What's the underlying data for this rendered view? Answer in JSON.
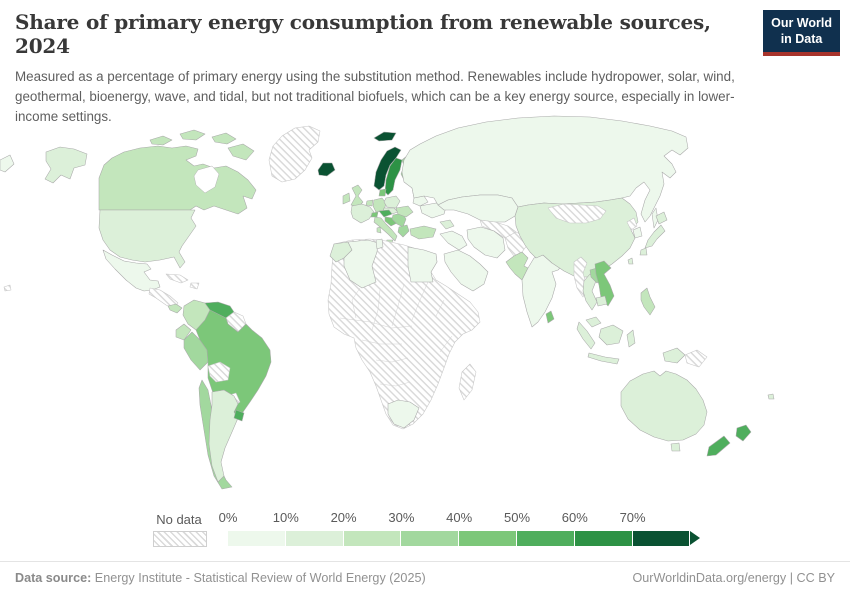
{
  "header": {
    "title": "Share of primary energy consumption from renewable sources, 2024",
    "subtitle": "Measured as a percentage of primary energy using the substitution method. Renewables include hydropower, solar, wind, geothermal, bioenergy, wave, and tidal, but not traditional biofuels, which can be a key energy source, especially in lower-income settings."
  },
  "logo": {
    "line1": "Our World",
    "line2": "in Data",
    "bg_color": "#10304e",
    "accent_color": "#a8342c"
  },
  "legend": {
    "no_data_label": "No data",
    "tick_labels": [
      "0%",
      "10%",
      "20%",
      "30%",
      "40%",
      "50%",
      "60%",
      "70%"
    ],
    "bin_colors": [
      "#edf8ec",
      "#dcf0d9",
      "#c3e6bc",
      "#a2d89e",
      "#7cc779",
      "#4fae5d",
      "#2d9245",
      "#0a5232"
    ],
    "bin_ranges": [
      "0-10%",
      "10-20%",
      "20-30%",
      "30-40%",
      "40-50%",
      "50-60%",
      "60-70%",
      "70%+"
    ],
    "hatch_color": "#dadada"
  },
  "footer": {
    "source_label": "Data source:",
    "source_text": " Energy Institute - Statistical Review of World Energy (2025)",
    "credit_text": "OurWorldinData.org/energy | CC BY"
  },
  "chart_data": {
    "type": "choropleth-map",
    "title": "Share of primary energy consumption from renewable sources, 2024",
    "unit": "% of primary energy (substitution method)",
    "year": 2024,
    "bins": [
      {
        "range": "0-10%",
        "color": "#edf8ec"
      },
      {
        "range": "10-20%",
        "color": "#dcf0d9"
      },
      {
        "range": "20-30%",
        "color": "#c3e6bc"
      },
      {
        "range": "30-40%",
        "color": "#a2d89e"
      },
      {
        "range": "40-50%",
        "color": "#7cc779"
      },
      {
        "range": "50-60%",
        "color": "#4fae5d"
      },
      {
        "range": "60-70%",
        "color": "#2d9245"
      },
      {
        "range": "70%+",
        "color": "#0a5232"
      }
    ],
    "regions": [
      {
        "name": "Iceland",
        "bin": "70%+"
      },
      {
        "name": "Norway",
        "bin": "70%+"
      },
      {
        "name": "Sweden",
        "bin": "60-70%"
      },
      {
        "name": "Austria",
        "bin": "50-60%"
      },
      {
        "name": "Uruguay",
        "bin": "50-60%"
      },
      {
        "name": "Venezuela",
        "bin": "50-60%"
      },
      {
        "name": "New Zealand",
        "bin": "50-60%"
      },
      {
        "name": "Brazil",
        "bin": "40-50%"
      },
      {
        "name": "Denmark",
        "bin": "40-50%"
      },
      {
        "name": "Switzerland",
        "bin": "40-50%"
      },
      {
        "name": "Portugal",
        "bin": "40-50%"
      },
      {
        "name": "Vietnam",
        "bin": "40-50%"
      },
      {
        "name": "Sri Lanka",
        "bin": "40-50%"
      },
      {
        "name": "Croatia and Slovenia",
        "bin": "40-50%"
      },
      {
        "name": "Finland",
        "bin": "30-40%"
      },
      {
        "name": "Spain",
        "bin": "30-40%"
      },
      {
        "name": "Peru",
        "bin": "30-40%"
      },
      {
        "name": "Chile",
        "bin": "30-40%"
      },
      {
        "name": "Laos",
        "bin": "30-40%"
      },
      {
        "name": "Greece",
        "bin": "30-40%"
      },
      {
        "name": "Balkans",
        "bin": "30-40%"
      },
      {
        "name": "Baltic states",
        "bin": "30-40%"
      },
      {
        "name": "Canada",
        "bin": "20-30%"
      },
      {
        "name": "United Kingdom",
        "bin": "20-30%"
      },
      {
        "name": "Ireland",
        "bin": "20-30%"
      },
      {
        "name": "Germany",
        "bin": "20-30%"
      },
      {
        "name": "Italy",
        "bin": "20-30%"
      },
      {
        "name": "Romania",
        "bin": "20-30%"
      },
      {
        "name": "Turkey",
        "bin": "20-30%"
      },
      {
        "name": "Pakistan",
        "bin": "20-30%"
      },
      {
        "name": "Colombia",
        "bin": "20-30%"
      },
      {
        "name": "Ecuador",
        "bin": "20-30%"
      },
      {
        "name": "Philippines",
        "bin": "20-30%"
      },
      {
        "name": "Panama and Costa Rica",
        "bin": "20-30%"
      },
      {
        "name": "United States",
        "bin": "10-20%"
      },
      {
        "name": "France",
        "bin": "10-20%"
      },
      {
        "name": "Poland",
        "bin": "10-20%"
      },
      {
        "name": "Central Europe",
        "bin": "10-20%"
      },
      {
        "name": "China",
        "bin": "10-20%"
      },
      {
        "name": "Japan",
        "bin": "10-20%"
      },
      {
        "name": "Taiwan",
        "bin": "10-20%"
      },
      {
        "name": "Australia",
        "bin": "10-20%"
      },
      {
        "name": "Indonesia",
        "bin": "10-20%"
      },
      {
        "name": "Thailand",
        "bin": "10-20%"
      },
      {
        "name": "Malaysia",
        "bin": "10-20%"
      },
      {
        "name": "Cambodia",
        "bin": "10-20%"
      },
      {
        "name": "Argentina",
        "bin": "10-20%"
      },
      {
        "name": "Morocco",
        "bin": "10-20%"
      },
      {
        "name": "Caucasus",
        "bin": "10-20%"
      },
      {
        "name": "Mexico",
        "bin": "0-10%"
      },
      {
        "name": "Russia",
        "bin": "0-10%"
      },
      {
        "name": "India",
        "bin": "0-10%"
      },
      {
        "name": "Kazakhstan",
        "bin": "0-10%"
      },
      {
        "name": "Ukraine",
        "bin": "0-10%"
      },
      {
        "name": "Belarus",
        "bin": "0-10%"
      },
      {
        "name": "Iran",
        "bin": "0-10%"
      },
      {
        "name": "Iraq and Levant",
        "bin": "0-10%"
      },
      {
        "name": "Saudi Arabia",
        "bin": "0-10%"
      },
      {
        "name": "Egypt",
        "bin": "0-10%"
      },
      {
        "name": "Algeria",
        "bin": "0-10%"
      },
      {
        "name": "Tunisia",
        "bin": "0-10%"
      },
      {
        "name": "South Africa",
        "bin": "0-10%"
      },
      {
        "name": "South Korea",
        "bin": "0-10%"
      },
      {
        "name": "Greenland",
        "bin": "No data"
      },
      {
        "name": "Cuba",
        "bin": "No data"
      },
      {
        "name": "Hispaniola",
        "bin": "No data"
      },
      {
        "name": "Central America",
        "bin": "No data"
      },
      {
        "name": "Bolivia",
        "bin": "No data"
      },
      {
        "name": "Paraguay",
        "bin": "No data"
      },
      {
        "name": "Guyanas",
        "bin": "No data"
      },
      {
        "name": "Sub-Saharan Africa",
        "bin": "No data"
      },
      {
        "name": "Libya",
        "bin": "No data"
      },
      {
        "name": "Madagascar",
        "bin": "No data"
      },
      {
        "name": "Mongolia",
        "bin": "No data"
      },
      {
        "name": "Central Asia",
        "bin": "No data"
      },
      {
        "name": "Afghanistan",
        "bin": "No data"
      },
      {
        "name": "Myanmar",
        "bin": "No data"
      },
      {
        "name": "North Korea",
        "bin": "No data"
      },
      {
        "name": "Papua New Guinea",
        "bin": "No data"
      }
    ]
  },
  "map": {
    "countries": [
      {
        "id": "greenland",
        "bin": 0
      },
      {
        "id": "canada",
        "bin": 3
      },
      {
        "id": "usa",
        "bin": 2
      },
      {
        "id": "mexico",
        "bin": 1
      },
      {
        "id": "central-america",
        "bin": 0
      },
      {
        "id": "panama-costa-rica",
        "bin": 3
      },
      {
        "id": "cuba",
        "bin": 0
      },
      {
        "id": "hispaniola",
        "bin": 0
      },
      {
        "id": "hawaii",
        "bin": 0
      },
      {
        "id": "colombia",
        "bin": 3
      },
      {
        "id": "venezuela",
        "bin": 6
      },
      {
        "id": "guyanas",
        "bin": 0
      },
      {
        "id": "ecuador",
        "bin": 3
      },
      {
        "id": "peru",
        "bin": 4
      },
      {
        "id": "brazil",
        "bin": 5
      },
      {
        "id": "bolivia",
        "bin": 0
      },
      {
        "id": "paraguay",
        "bin": 0
      },
      {
        "id": "chile",
        "bin": 4
      },
      {
        "id": "argentina",
        "bin": 2
      },
      {
        "id": "uruguay",
        "bin": 6
      },
      {
        "id": "iceland",
        "bin": 8
      },
      {
        "id": "norway",
        "bin": 8
      },
      {
        "id": "sweden",
        "bin": 7
      },
      {
        "id": "finland",
        "bin": 4
      },
      {
        "id": "denmark",
        "bin": 5
      },
      {
        "id": "uk",
        "bin": 3
      },
      {
        "id": "ireland",
        "bin": 3
      },
      {
        "id": "benelux",
        "bin": 3
      },
      {
        "id": "france",
        "bin": 2
      },
      {
        "id": "germany",
        "bin": 3
      },
      {
        "id": "poland",
        "bin": 2
      },
      {
        "id": "czech-slovakia",
        "bin": 2
      },
      {
        "id": "switzerland",
        "bin": 5
      },
      {
        "id": "austria",
        "bin": 6
      },
      {
        "id": "italy",
        "bin": 3
      },
      {
        "id": "croatia-slovenia",
        "bin": 5
      },
      {
        "id": "balkans",
        "bin": 4
      },
      {
        "id": "greece",
        "bin": 4
      },
      {
        "id": "romania",
        "bin": 3
      },
      {
        "id": "baltics",
        "bin": 4
      },
      {
        "id": "belarus",
        "bin": 1
      },
      {
        "id": "ukraine",
        "bin": 1
      },
      {
        "id": "russia",
        "bin": 1
      },
      {
        "id": "kazakhstan",
        "bin": 1
      },
      {
        "id": "central-asia",
        "bin": 0
      },
      {
        "id": "afghanistan",
        "bin": 0
      },
      {
        "id": "pakistan",
        "bin": 3
      },
      {
        "id": "iran",
        "bin": 1
      },
      {
        "id": "iraq-levant",
        "bin": 1
      },
      {
        "id": "saudi-arabia",
        "bin": 1
      },
      {
        "id": "turkey",
        "bin": 3
      },
      {
        "id": "caucasus",
        "bin": 2
      },
      {
        "id": "india",
        "bin": 1
      },
      {
        "id": "sri-lanka",
        "bin": 5
      },
      {
        "id": "china",
        "bin": 2
      },
      {
        "id": "mongolia",
        "bin": 0
      },
      {
        "id": "north-korea",
        "bin": 0
      },
      {
        "id": "south-korea",
        "bin": 1
      },
      {
        "id": "japan",
        "bin": 2
      },
      {
        "id": "taiwan",
        "bin": 2
      },
      {
        "id": "myanmar",
        "bin": 0
      },
      {
        "id": "thailand",
        "bin": 2
      },
      {
        "id": "laos",
        "bin": 4
      },
      {
        "id": "vietnam",
        "bin": 5
      },
      {
        "id": "cambodia",
        "bin": 2
      },
      {
        "id": "malaysia",
        "bin": 2
      },
      {
        "id": "indonesia",
        "bin": 2
      },
      {
        "id": "philippines",
        "bin": 3
      },
      {
        "id": "new-guinea-west",
        "bin": 2
      },
      {
        "id": "papua-new-guinea",
        "bin": 0
      },
      {
        "id": "africa",
        "bin": 0
      },
      {
        "id": "morocco",
        "bin": 2
      },
      {
        "id": "algeria",
        "bin": 1
      },
      {
        "id": "tunisia",
        "bin": 1
      },
      {
        "id": "egypt",
        "bin": 1
      },
      {
        "id": "south-africa",
        "bin": 1
      },
      {
        "id": "madagascar",
        "bin": 0
      },
      {
        "id": "australia",
        "bin": 2
      },
      {
        "id": "new-zealand",
        "bin": 6
      },
      {
        "id": "fiji",
        "bin": 2
      }
    ]
  }
}
